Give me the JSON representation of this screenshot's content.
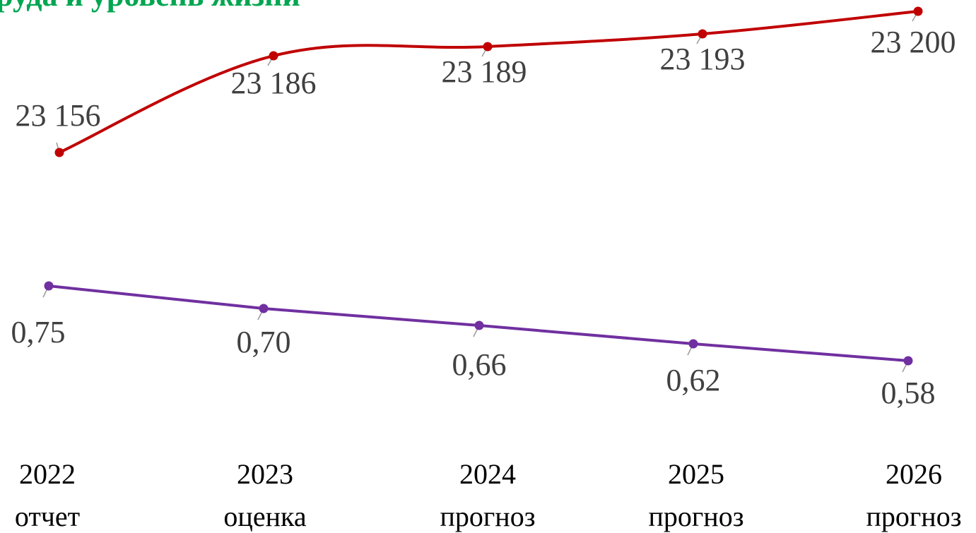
{
  "colors": {
    "title": "#00a650",
    "series_upper": "#c00000",
    "series_lower": "#7030a0"
  },
  "chart_data": {
    "type": "line",
    "title": "труда и уровень жизни",
    "categories": [
      {
        "year": "2022",
        "sub": "отчет"
      },
      {
        "year": "2023",
        "sub": "оценка"
      },
      {
        "year": "2024",
        "sub": "прогноз"
      },
      {
        "year": "2025",
        "sub": "прогноз"
      },
      {
        "year": "2026",
        "sub": "прогноз"
      }
    ],
    "series": [
      {
        "values": [
          23156,
          23186,
          23189,
          23193,
          23200
        ],
        "labels": [
          "23 156",
          "23 186",
          "23 189",
          "23 193",
          "23 200"
        ],
        "color": "#c00000",
        "smooth": true
      },
      {
        "values": [
          0.75,
          0.7,
          0.66,
          0.62,
          0.58
        ],
        "labels": [
          "0,75",
          "0,70",
          "0,66",
          "0,62",
          "0,58"
        ],
        "color": "#7030a0",
        "smooth": false
      }
    ],
    "grid": false,
    "legend": "none"
  }
}
